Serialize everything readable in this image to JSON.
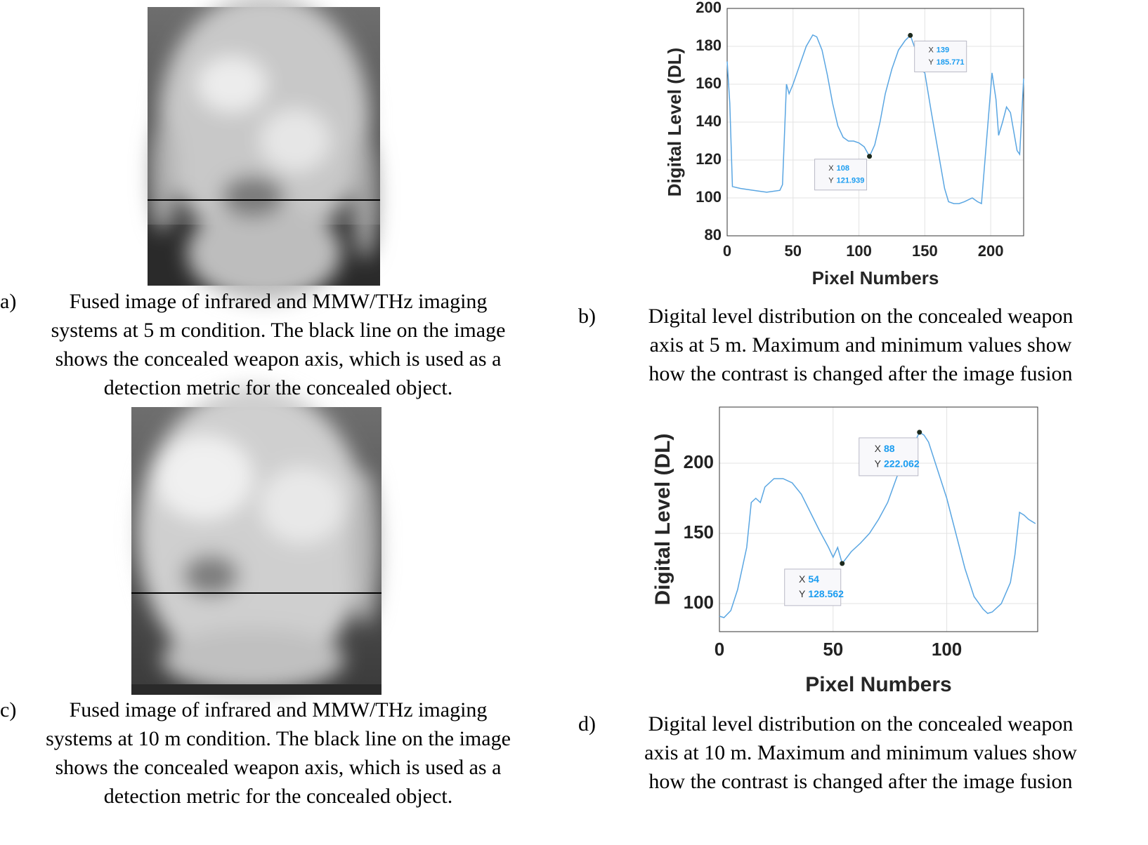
{
  "chart_data": [
    {
      "type": "line",
      "x_label": "Pixel Numbers",
      "y_label": "Digital Level (DL)",
      "xlim": [
        0,
        225
      ],
      "xticks": [
        0,
        50,
        100,
        150,
        200
      ],
      "ylim": [
        80,
        200
      ],
      "yticks": [
        80,
        100,
        120,
        140,
        160,
        180,
        200
      ],
      "grid": true,
      "series": [
        {
          "color": "#5aa6e2",
          "x": [
            0,
            2,
            4,
            10,
            20,
            30,
            40,
            42,
            45,
            47,
            50,
            55,
            60,
            65,
            68,
            72,
            76,
            80,
            84,
            88,
            92,
            96,
            100,
            104,
            108,
            112,
            116,
            120,
            125,
            130,
            135,
            139,
            142,
            146,
            148,
            150,
            155,
            160,
            165,
            168,
            172,
            176,
            180,
            186,
            190,
            193,
            201,
            204,
            206,
            209,
            212,
            215,
            220,
            222,
            225
          ],
          "values": [
            172,
            150,
            106,
            105,
            104,
            103,
            104,
            107,
            160,
            155,
            160,
            170,
            180,
            186,
            185,
            178,
            165,
            150,
            138,
            132,
            130,
            130,
            129,
            127,
            121.939,
            128,
            140,
            155,
            168,
            178,
            183,
            185.771,
            180,
            176,
            167,
            166,
            145,
            125,
            105,
            98,
            97,
            97,
            98,
            100,
            98,
            97,
            166,
            152,
            133,
            140,
            148,
            145,
            125,
            123,
            163
          ]
        }
      ],
      "datatip_labels": [
        "X",
        "Y"
      ],
      "annotations": [
        {
          "x": 139,
          "y": 185.771
        },
        {
          "x": 108,
          "y": 121.939
        }
      ]
    },
    {
      "type": "line",
      "x_label": "Pixel Numbers",
      "y_label": "Digital Level (DL)",
      "xlim": [
        0,
        140
      ],
      "xticks": [
        0,
        50,
        100
      ],
      "ylim": [
        80,
        240
      ],
      "yticks": [
        100,
        150,
        200
      ],
      "grid": true,
      "series": [
        {
          "color": "#5aa6e2",
          "x": [
            0,
            2,
            5,
            8,
            12,
            14,
            16,
            18,
            20,
            24,
            28,
            32,
            36,
            40,
            44,
            48,
            50,
            52,
            54,
            58,
            62,
            66,
            70,
            74,
            78,
            82,
            85,
            88,
            90,
            92,
            94,
            96,
            100,
            104,
            108,
            112,
            116,
            118,
            120,
            124,
            128,
            130,
            132,
            134,
            136,
            139
          ],
          "values": [
            91,
            90,
            95,
            110,
            140,
            172,
            175,
            172,
            183,
            189,
            189,
            186,
            178,
            165,
            152,
            140,
            133,
            140,
            128.562,
            137,
            143,
            150,
            160,
            172,
            190,
            205,
            212,
            222.062,
            220,
            215,
            205,
            195,
            175,
            150,
            125,
            105,
            96,
            93,
            94,
            100,
            115,
            135,
            165,
            163,
            160,
            157
          ]
        }
      ],
      "datatip_labels": [
        "X",
        "Y"
      ],
      "annotations": [
        {
          "x": 88,
          "y": 222.062
        },
        {
          "x": 54,
          "y": 128.562
        }
      ]
    }
  ],
  "captions": [
    {
      "label": "a)",
      "lines": [
        "Fused image of infrared and MMW/THz imaging",
        "systems at 5 m condition. The black line on the image",
        "shows the concealed weapon axis, which is used as a",
        "detection metric for the concealed object."
      ]
    },
    {
      "label": "b)",
      "lines": [
        "Digital level distribution on the concealed weapon",
        "axis at 5 m. Maximum and minimum values show",
        "how the contrast is changed after the image fusion"
      ]
    },
    {
      "label": "c)",
      "lines": [
        "Fused image of infrared and MMW/THz imaging",
        "systems at 10 m condition. The black line on the image",
        "shows the concealed weapon axis, which is used as a",
        "detection metric for the concealed object."
      ]
    },
    {
      "label": "d)",
      "lines": [
        "Digital level distribution on the concealed weapon",
        "axis at 10 m. Maximum and minimum values show",
        "how the contrast is changed after the image fusion"
      ]
    }
  ]
}
